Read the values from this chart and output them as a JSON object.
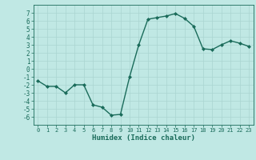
{
  "x": [
    0,
    1,
    2,
    3,
    4,
    5,
    6,
    7,
    8,
    9,
    10,
    11,
    12,
    13,
    14,
    15,
    16,
    17,
    18,
    19,
    20,
    21,
    22,
    23
  ],
  "y": [
    -1.5,
    -2.2,
    -2.2,
    -3.0,
    -2.0,
    -2.0,
    -4.5,
    -4.8,
    -5.8,
    -5.7,
    -1.0,
    3.0,
    6.2,
    6.4,
    6.6,
    6.9,
    6.3,
    5.3,
    2.5,
    2.4,
    3.0,
    3.5,
    3.2,
    2.8
  ],
  "xlabel": "Humidex (Indice chaleur)",
  "line_color": "#1a6b5a",
  "bg_color": "#c0e8e4",
  "grid_color": "#aad4d0",
  "ylim": [
    -7,
    8
  ],
  "xlim": [
    -0.5,
    23.5
  ],
  "yticks": [
    -6,
    -5,
    -4,
    -3,
    -2,
    -1,
    0,
    1,
    2,
    3,
    4,
    5,
    6,
    7
  ],
  "xticks": [
    0,
    1,
    2,
    3,
    4,
    5,
    6,
    7,
    8,
    9,
    10,
    11,
    12,
    13,
    14,
    15,
    16,
    17,
    18,
    19,
    20,
    21,
    22,
    23
  ]
}
